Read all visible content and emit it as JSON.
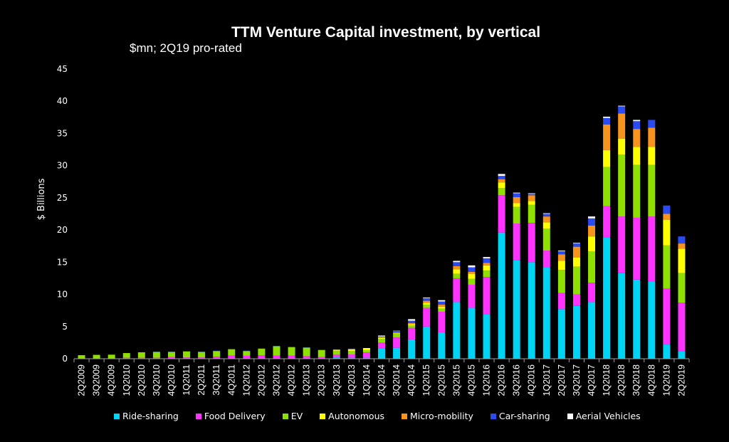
{
  "chart_data": {
    "type": "bar",
    "stacked": true,
    "title": "TTM Venture Capital investment, by vertical",
    "subtitle": "$mn; 2Q19 pro-rated",
    "xlabel": "",
    "ylabel": "$ Billions",
    "ylim": [
      0,
      45
    ],
    "yticks": [
      0,
      5,
      10,
      15,
      20,
      25,
      30,
      35,
      40,
      45
    ],
    "grid": false,
    "legend_position": "bottom",
    "categories": [
      "2Q2009",
      "3Q2009",
      "4Q2009",
      "1Q2010",
      "2Q2010",
      "3Q2010",
      "4Q2010",
      "1Q2011",
      "2Q2011",
      "3Q2011",
      "4Q2011",
      "1Q2012",
      "2Q2012",
      "3Q2012",
      "4Q2012",
      "1Q2013",
      "2Q2013",
      "3Q2013",
      "4Q2013",
      "1Q2014",
      "2Q2014",
      "3Q2014",
      "4Q2014",
      "1Q2015",
      "2Q2015",
      "3Q2015",
      "4Q2015",
      "1Q2016",
      "2Q2016",
      "3Q2016",
      "4Q2016",
      "1Q2017",
      "2Q2017",
      "3Q2017",
      "4Q2017",
      "1Q2018",
      "2Q2018",
      "3Q2018",
      "4Q2018",
      "1Q2019",
      "2Q2019"
    ],
    "series": [
      {
        "name": "Ride-sharing",
        "color": "#00D4F5",
        "values": [
          0,
          0,
          0,
          0,
          0,
          0,
          0,
          0,
          0,
          0,
          0,
          0,
          0,
          0,
          0,
          0,
          0,
          0.2,
          0.15,
          0.15,
          1.55,
          1.7,
          3.0,
          5.0,
          4.1,
          8.8,
          7.9,
          6.9,
          19.6,
          15.3,
          15.0,
          14.2,
          7.7,
          8.2,
          8.8,
          18.8,
          13.3,
          12.3,
          12.0,
          2.2,
          1.2
        ]
      },
      {
        "name": "Food Delivery",
        "color": "#FF33FF",
        "values": [
          0,
          0,
          0,
          0.15,
          0.15,
          0.15,
          0.25,
          0.2,
          0.2,
          0.3,
          0.48,
          0.45,
          0.55,
          0.5,
          0.5,
          0.4,
          0.25,
          0.42,
          0.51,
          0.81,
          0.95,
          1.6,
          1.8,
          2.9,
          3.2,
          3.7,
          3.6,
          5.8,
          5.8,
          5.7,
          6.1,
          2.6,
          2.5,
          1.8,
          3.0,
          4.9,
          8.8,
          9.6,
          10.1,
          8.7,
          7.5
        ]
      },
      {
        "name": "EV",
        "color": "#8FE000",
        "values": [
          0.55,
          0.6,
          0.63,
          0.73,
          0.85,
          0.9,
          0.8,
          0.93,
          0.85,
          0.9,
          1.0,
          0.75,
          1.0,
          1.45,
          1.3,
          1.32,
          1.1,
          0.56,
          0.52,
          0.37,
          0.6,
          0.6,
          0.4,
          0.5,
          0.5,
          0.7,
          0.9,
          1.0,
          1.1,
          2.6,
          2.8,
          3.4,
          3.6,
          4.3,
          4.9,
          6.1,
          9.6,
          8.2,
          8.0,
          6.7,
          4.6
        ]
      },
      {
        "name": "Autonomous",
        "color": "#FFFF00",
        "values": [
          0,
          0,
          0,
          0,
          0,
          0,
          0,
          0,
          0,
          0,
          0,
          0,
          0,
          0,
          0,
          0,
          0,
          0.12,
          0.22,
          0.22,
          0.2,
          0.1,
          0.2,
          0.3,
          0.3,
          0.7,
          0.8,
          0.8,
          0.9,
          0.6,
          0.6,
          1.0,
          1.4,
          1.4,
          2.3,
          2.6,
          2.5,
          2.8,
          2.8,
          4.0,
          3.8
        ]
      },
      {
        "name": "Micro-mobility",
        "color": "#F7941D",
        "values": [
          0,
          0,
          0,
          0,
          0,
          0,
          0,
          0,
          0,
          0,
          0,
          0,
          0,
          0,
          0,
          0,
          0,
          0,
          0,
          0,
          0.05,
          0.1,
          0.15,
          0.3,
          0.3,
          0.5,
          0.3,
          0.4,
          0.5,
          0.9,
          0.9,
          0.9,
          1.0,
          1.7,
          1.7,
          4.0,
          3.9,
          2.8,
          3.0,
          0.9,
          0.8
        ]
      },
      {
        "name": "Car-sharing",
        "color": "#2B4BF2",
        "values": [
          0,
          0,
          0,
          0,
          0,
          0.05,
          0.05,
          0.05,
          0.05,
          0.05,
          0,
          0.05,
          0.05,
          0.05,
          0.05,
          0.05,
          0.05,
          0,
          0,
          0,
          0.1,
          0.2,
          0.35,
          0.4,
          0.5,
          0.6,
          0.7,
          0.7,
          0.5,
          0.6,
          0.2,
          0.4,
          0.5,
          0.5,
          1.1,
          1.0,
          1.1,
          1.2,
          1.2,
          1.3,
          1.1
        ]
      },
      {
        "name": "Aerial Vehicles",
        "color": "#FFFFFF",
        "values": [
          0,
          0,
          0,
          0,
          0,
          0,
          0,
          0,
          0,
          0,
          0,
          0,
          0,
          0,
          0,
          0,
          0,
          0.1,
          0.1,
          0.1,
          0.15,
          0.05,
          0.25,
          0.1,
          0.2,
          0.2,
          0.3,
          0.2,
          0.3,
          0.1,
          0.1,
          0.1,
          0.1,
          0.1,
          0.3,
          0.2,
          0.1,
          0.2,
          0,
          0,
          0
        ]
      }
    ]
  }
}
